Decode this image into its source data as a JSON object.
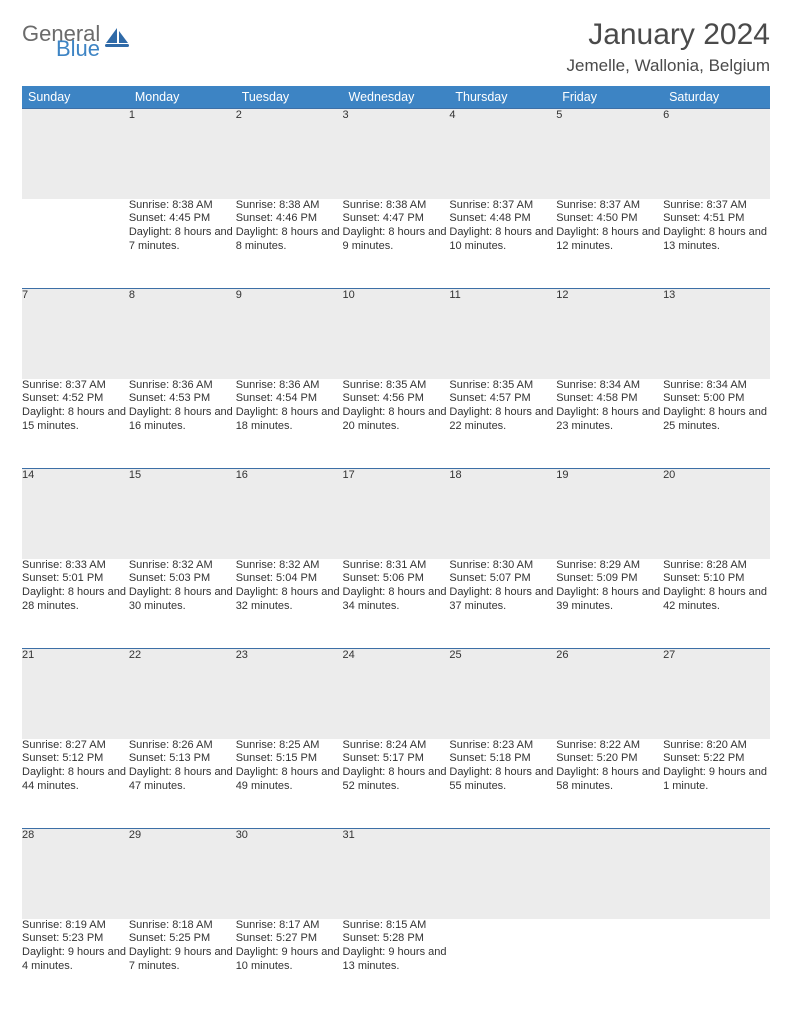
{
  "brand": {
    "part1": "General",
    "part2": "Blue",
    "color1": "#6b6b6b",
    "color2": "#3d84c4"
  },
  "title": "January 2024",
  "location": "Jemelle, Wallonia, Belgium",
  "colors": {
    "header_bg": "#3d84c4",
    "header_border": "#3d6fa6",
    "daynum_bg": "#ececec",
    "text": "#333333",
    "title_text": "#4a4a4a"
  },
  "weekdays": [
    "Sunday",
    "Monday",
    "Tuesday",
    "Wednesday",
    "Thursday",
    "Friday",
    "Saturday"
  ],
  "weeks": [
    [
      null,
      {
        "n": "1",
        "sr": "8:38 AM",
        "ss": "4:45 PM",
        "dl": "8 hours and 7 minutes."
      },
      {
        "n": "2",
        "sr": "8:38 AM",
        "ss": "4:46 PM",
        "dl": "8 hours and 8 minutes."
      },
      {
        "n": "3",
        "sr": "8:38 AM",
        "ss": "4:47 PM",
        "dl": "8 hours and 9 minutes."
      },
      {
        "n": "4",
        "sr": "8:37 AM",
        "ss": "4:48 PM",
        "dl": "8 hours and 10 minutes."
      },
      {
        "n": "5",
        "sr": "8:37 AM",
        "ss": "4:50 PM",
        "dl": "8 hours and 12 minutes."
      },
      {
        "n": "6",
        "sr": "8:37 AM",
        "ss": "4:51 PM",
        "dl": "8 hours and 13 minutes."
      }
    ],
    [
      {
        "n": "7",
        "sr": "8:37 AM",
        "ss": "4:52 PM",
        "dl": "8 hours and 15 minutes."
      },
      {
        "n": "8",
        "sr": "8:36 AM",
        "ss": "4:53 PM",
        "dl": "8 hours and 16 minutes."
      },
      {
        "n": "9",
        "sr": "8:36 AM",
        "ss": "4:54 PM",
        "dl": "8 hours and 18 minutes."
      },
      {
        "n": "10",
        "sr": "8:35 AM",
        "ss": "4:56 PM",
        "dl": "8 hours and 20 minutes."
      },
      {
        "n": "11",
        "sr": "8:35 AM",
        "ss": "4:57 PM",
        "dl": "8 hours and 22 minutes."
      },
      {
        "n": "12",
        "sr": "8:34 AM",
        "ss": "4:58 PM",
        "dl": "8 hours and 23 minutes."
      },
      {
        "n": "13",
        "sr": "8:34 AM",
        "ss": "5:00 PM",
        "dl": "8 hours and 25 minutes."
      }
    ],
    [
      {
        "n": "14",
        "sr": "8:33 AM",
        "ss": "5:01 PM",
        "dl": "8 hours and 28 minutes."
      },
      {
        "n": "15",
        "sr": "8:32 AM",
        "ss": "5:03 PM",
        "dl": "8 hours and 30 minutes."
      },
      {
        "n": "16",
        "sr": "8:32 AM",
        "ss": "5:04 PM",
        "dl": "8 hours and 32 minutes."
      },
      {
        "n": "17",
        "sr": "8:31 AM",
        "ss": "5:06 PM",
        "dl": "8 hours and 34 minutes."
      },
      {
        "n": "18",
        "sr": "8:30 AM",
        "ss": "5:07 PM",
        "dl": "8 hours and 37 minutes."
      },
      {
        "n": "19",
        "sr": "8:29 AM",
        "ss": "5:09 PM",
        "dl": "8 hours and 39 minutes."
      },
      {
        "n": "20",
        "sr": "8:28 AM",
        "ss": "5:10 PM",
        "dl": "8 hours and 42 minutes."
      }
    ],
    [
      {
        "n": "21",
        "sr": "8:27 AM",
        "ss": "5:12 PM",
        "dl": "8 hours and 44 minutes."
      },
      {
        "n": "22",
        "sr": "8:26 AM",
        "ss": "5:13 PM",
        "dl": "8 hours and 47 minutes."
      },
      {
        "n": "23",
        "sr": "8:25 AM",
        "ss": "5:15 PM",
        "dl": "8 hours and 49 minutes."
      },
      {
        "n": "24",
        "sr": "8:24 AM",
        "ss": "5:17 PM",
        "dl": "8 hours and 52 minutes."
      },
      {
        "n": "25",
        "sr": "8:23 AM",
        "ss": "5:18 PM",
        "dl": "8 hours and 55 minutes."
      },
      {
        "n": "26",
        "sr": "8:22 AM",
        "ss": "5:20 PM",
        "dl": "8 hours and 58 minutes."
      },
      {
        "n": "27",
        "sr": "8:20 AM",
        "ss": "5:22 PM",
        "dl": "9 hours and 1 minute."
      }
    ],
    [
      {
        "n": "28",
        "sr": "8:19 AM",
        "ss": "5:23 PM",
        "dl": "9 hours and 4 minutes."
      },
      {
        "n": "29",
        "sr": "8:18 AM",
        "ss": "5:25 PM",
        "dl": "9 hours and 7 minutes."
      },
      {
        "n": "30",
        "sr": "8:17 AM",
        "ss": "5:27 PM",
        "dl": "9 hours and 10 minutes."
      },
      {
        "n": "31",
        "sr": "8:15 AM",
        "ss": "5:28 PM",
        "dl": "9 hours and 13 minutes."
      },
      null,
      null,
      null
    ]
  ],
  "labels": {
    "sunrise": "Sunrise:",
    "sunset": "Sunset:",
    "daylight": "Daylight:"
  }
}
